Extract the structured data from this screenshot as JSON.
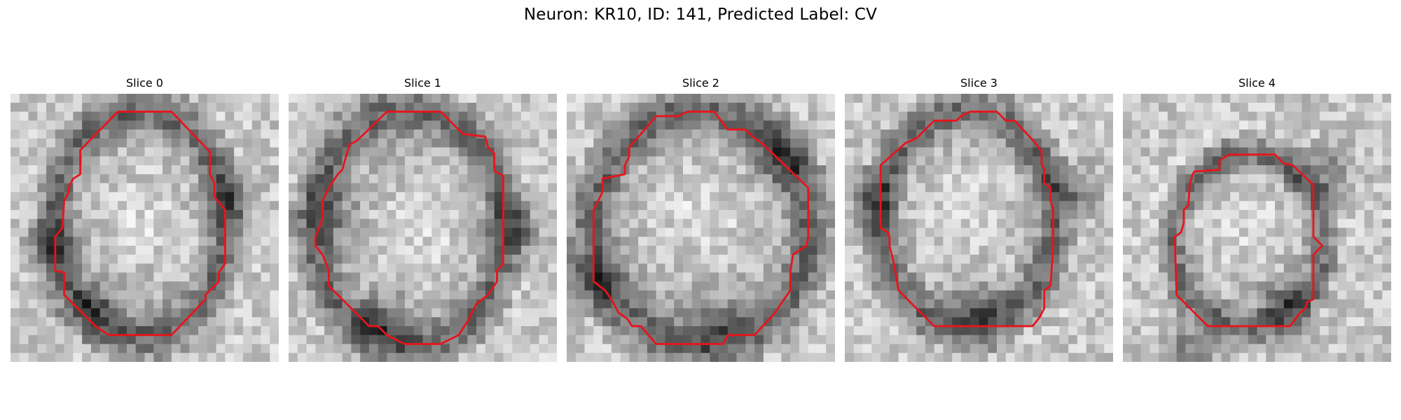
{
  "figure": {
    "title": "Neuron: KR10, ID: 141, Predicted Label: CV",
    "contour_color": "#e8141b"
  },
  "panels": [
    {
      "title": "Slice 0",
      "seed": 11,
      "bright_center": [
        0.5,
        0.46
      ],
      "ring_dark": [
        [
          0.8,
          0.4
        ],
        [
          0.15,
          0.55
        ],
        [
          0.3,
          0.8
        ]
      ]
    },
    {
      "title": "Slice 1",
      "seed": 23,
      "bright_center": [
        0.5,
        0.5
      ],
      "ring_dark": [
        [
          0.85,
          0.5
        ],
        [
          0.35,
          0.85
        ],
        [
          0.15,
          0.45
        ]
      ]
    },
    {
      "title": "Slice 2",
      "seed": 37,
      "bright_center": [
        0.5,
        0.45
      ],
      "ring_dark": [
        [
          0.55,
          0.85
        ],
        [
          0.8,
          0.25
        ],
        [
          0.1,
          0.7
        ]
      ]
    },
    {
      "title": "Slice 3",
      "seed": 51,
      "bright_center": [
        0.45,
        0.45
      ],
      "ring_dark": [
        [
          0.5,
          0.8
        ],
        [
          0.1,
          0.4
        ],
        [
          0.85,
          0.35
        ]
      ]
    },
    {
      "title": "Slice 4",
      "seed": 67,
      "bright_center": [
        0.45,
        0.5
      ],
      "ring_dark": [
        [
          0.75,
          0.3
        ],
        [
          0.6,
          0.78
        ],
        [
          0.25,
          0.95
        ]
      ]
    }
  ]
}
